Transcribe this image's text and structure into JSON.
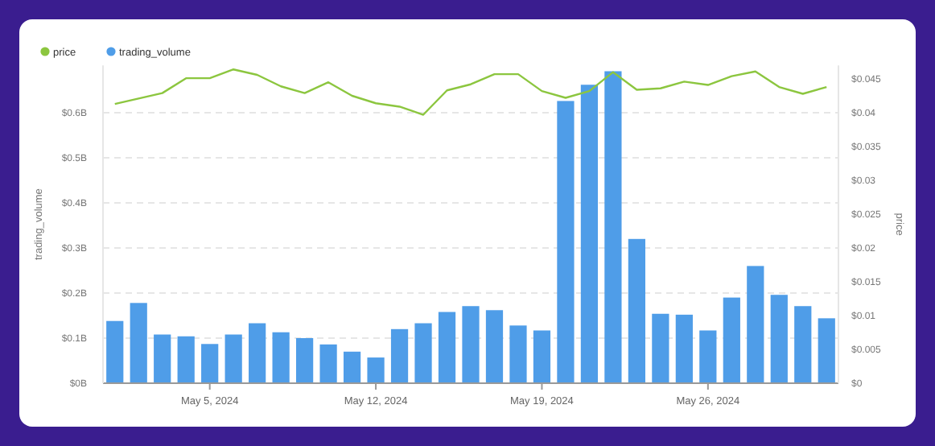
{
  "chart_data": {
    "type": "bar",
    "x": [
      "2024-05-01",
      "2024-05-02",
      "2024-05-03",
      "2024-05-04",
      "2024-05-05",
      "2024-05-06",
      "2024-05-07",
      "2024-05-08",
      "2024-05-09",
      "2024-05-10",
      "2024-05-11",
      "2024-05-12",
      "2024-05-13",
      "2024-05-14",
      "2024-05-15",
      "2024-05-16",
      "2024-05-17",
      "2024-05-18",
      "2024-05-19",
      "2024-05-20",
      "2024-05-21",
      "2024-05-22",
      "2024-05-23",
      "2024-05-24",
      "2024-05-25",
      "2024-05-26",
      "2024-05-27",
      "2024-05-28",
      "2024-05-29",
      "2024-05-30",
      "2024-05-31"
    ],
    "xlim": [
      "2024-04-30T12:00",
      "2024-05-31T12:00"
    ],
    "xticks": [
      {
        "value": "2024-05-05",
        "label": "May 5, 2024"
      },
      {
        "value": "2024-05-12",
        "label": "May 12, 2024"
      },
      {
        "value": "2024-05-19",
        "label": "May 19, 2024"
      },
      {
        "value": "2024-05-26",
        "label": "May 26, 2024"
      }
    ],
    "series": [
      {
        "name": "price",
        "type": "line",
        "axis": "y2",
        "color": "#8cc63f",
        "values": [
          0.0413,
          0.0421,
          0.0429,
          0.0451,
          0.0451,
          0.0464,
          0.0456,
          0.0439,
          0.0429,
          0.0445,
          0.0425,
          0.0414,
          0.0409,
          0.0397,
          0.0433,
          0.0442,
          0.0457,
          0.0457,
          0.0432,
          0.0422,
          0.0432,
          0.046,
          0.0434,
          0.0436,
          0.0446,
          0.0441,
          0.0454,
          0.0461,
          0.0438,
          0.0428,
          0.0438
        ]
      },
      {
        "name": "trading_volume",
        "color": "#4f9de8",
        "values": [
          0.138,
          0.178,
          0.108,
          0.104,
          0.087,
          0.108,
          0.133,
          0.113,
          0.1,
          0.086,
          0.07,
          0.057,
          0.12,
          0.133,
          0.158,
          0.171,
          0.162,
          0.128,
          0.117,
          0.626,
          0.662,
          0.692,
          0.32,
          0.154,
          0.152,
          0.117,
          0.19,
          0.26,
          0.196,
          0.171,
          0.144
        ]
      }
    ],
    "ylim": [
      0,
      0.705
    ],
    "yticks": [
      {
        "value": 0,
        "label": "$0B"
      },
      {
        "value": 0.1,
        "label": "$0.1B"
      },
      {
        "value": 0.2,
        "label": "$0.2B"
      },
      {
        "value": 0.3,
        "label": "$0.3B"
      },
      {
        "value": 0.4,
        "label": "$0.4B"
      },
      {
        "value": 0.5,
        "label": "$0.5B"
      },
      {
        "value": 0.6,
        "label": "$0.6B"
      }
    ],
    "y2lim": [
      0,
      0.047
    ],
    "y2ticks": [
      {
        "value": 0,
        "label": "$0"
      },
      {
        "value": 0.005,
        "label": "$0.005"
      },
      {
        "value": 0.01,
        "label": "$0.01"
      },
      {
        "value": 0.015,
        "label": "$0.015"
      },
      {
        "value": 0.02,
        "label": "$0.02"
      },
      {
        "value": 0.025,
        "label": "$0.025"
      },
      {
        "value": 0.03,
        "label": "$0.03"
      },
      {
        "value": 0.035,
        "label": "$0.035"
      },
      {
        "value": 0.04,
        "label": "$0.04"
      },
      {
        "value": 0.045,
        "label": "$0.045"
      }
    ],
    "ylabel": "trading_volume",
    "y2label": "price",
    "grid": "y",
    "legend": "top left",
    "marker": "none",
    "line_style": "solid"
  }
}
